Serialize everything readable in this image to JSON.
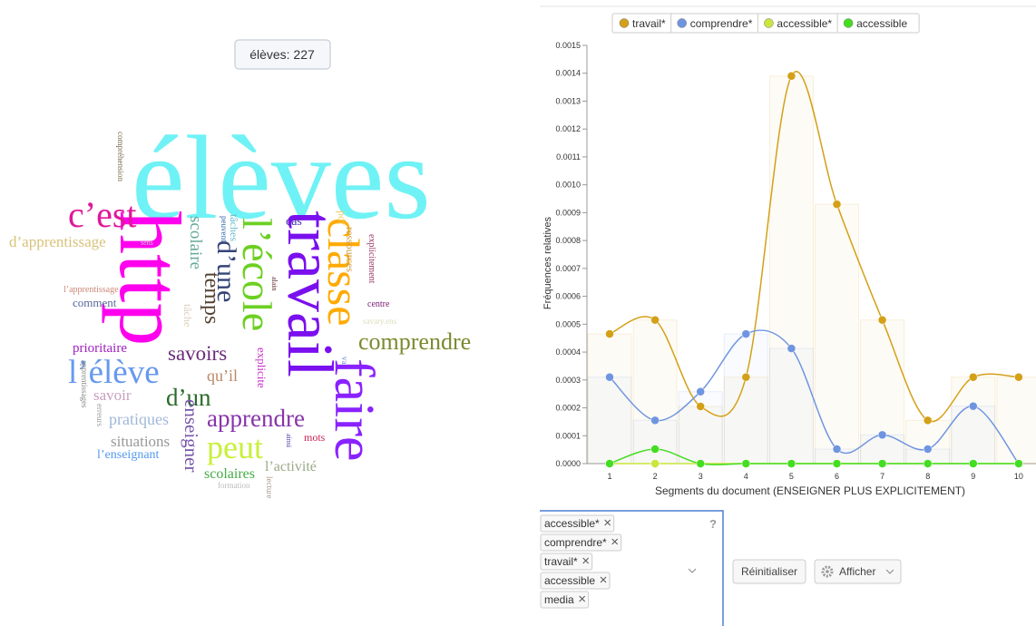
{
  "tooltip": "élèves: 227",
  "word_cloud": {
    "words": [
      {
        "text": "élèves",
        "color": "#6ff2f5"
      },
      {
        "text": "http",
        "color": "#ff00ee"
      },
      {
        "text": "travail",
        "color": "#7a10ee"
      },
      {
        "text": "faire",
        "color": "#8a22ff"
      },
      {
        "text": "classe",
        "color": "#ffaa00"
      },
      {
        "text": "l’école",
        "color": "#6cd022"
      },
      {
        "text": "c’est",
        "color": "#e0189a"
      },
      {
        "text": "l’élève",
        "color": "#6699ee"
      },
      {
        "text": "peut",
        "color": "#c8f03a"
      },
      {
        "text": "d’une",
        "color": "#334477"
      },
      {
        "text": "comprendre",
        "color": "#7a8a30"
      },
      {
        "text": "apprendre",
        "color": "#8833aa"
      },
      {
        "text": "d’un",
        "color": "#2a6a2a"
      },
      {
        "text": "savoirs",
        "color": "#6a2a7a"
      },
      {
        "text": "temps",
        "color": "#554433"
      },
      {
        "text": "enseigner",
        "color": "#7755aa"
      },
      {
        "text": "scolaire",
        "color": "#66aa99"
      },
      {
        "text": "d’apprentissage",
        "color": "#d9c27a"
      },
      {
        "text": "pratiques",
        "color": "#a0b8d8"
      },
      {
        "text": "situations",
        "color": "#999999"
      },
      {
        "text": "qu’il",
        "color": "#bb8866"
      },
      {
        "text": "savoir",
        "color": "#c9a0c0"
      },
      {
        "text": "scolaires",
        "color": "#44aa44"
      },
      {
        "text": "l’activité",
        "color": "#99aa88"
      },
      {
        "text": "prioritaire",
        "color": "#a020c0"
      },
      {
        "text": "l’enseignant",
        "color": "#5599ee"
      },
      {
        "text": "comment",
        "color": "#5a6a9a"
      },
      {
        "text": "cas",
        "color": "#4433aa"
      },
      {
        "text": "mots",
        "color": "#cc2255"
      },
      {
        "text": "explicite",
        "color": "#cc33cc"
      },
      {
        "text": "tâches",
        "color": "#66bbcc"
      },
      {
        "text": "ressources",
        "color": "#cc9944"
      },
      {
        "text": "explicitement",
        "color": "#993366"
      },
      {
        "text": "centre",
        "color": "#772277"
      },
      {
        "text": "pdf",
        "color": "#eecc66"
      },
      {
        "text": "l’apprentissage",
        "color": "#cc8877"
      },
      {
        "text": "tâche",
        "color": "#ddccbb"
      },
      {
        "text": "savary.ens",
        "color": "#ddddbb"
      },
      {
        "text": "compréhension",
        "color": "#776644"
      },
      {
        "text": "apprentissages",
        "color": "#888888"
      },
      {
        "text": "erreurs",
        "color": "#999999"
      },
      {
        "text": "lecture",
        "color": "#aa9988"
      },
      {
        "text": "formation",
        "color": "#bbbbbb"
      },
      {
        "text": "ainsi",
        "color": "#5544aa"
      },
      {
        "text": "peuvent",
        "color": "#3366aa"
      },
      {
        "text": "va",
        "color": "#7788cc"
      },
      {
        "text": "alain",
        "color": "#663333"
      },
      {
        "text": "sens",
        "color": "#cccccc"
      }
    ]
  },
  "chart_data": {
    "type": "line",
    "xlabel": "Segments du document (ENSEIGNER PLUS EXPLICITEMENT)",
    "ylabel": "Fréquences relatives",
    "categories": [
      "1",
      "2",
      "3",
      "4",
      "5",
      "6",
      "7",
      "8",
      "9",
      "10"
    ],
    "series": [
      {
        "name": "travail*",
        "color": "#d4a017",
        "values": [
          0.000465,
          0.000515,
          0.000205,
          0.00031,
          0.00139,
          0.00093,
          0.000515,
          0.000155,
          0.00031,
          0.00031
        ]
      },
      {
        "name": "comprendre*",
        "color": "#6f95e0",
        "values": [
          0.00031,
          0.000155,
          0.000258,
          0.000465,
          0.000413,
          5.2e-05,
          0.000103,
          5.2e-05,
          0.000206,
          0
        ]
      },
      {
        "name": "accessible*",
        "color": "#c8e63c",
        "values": [
          0,
          0,
          0,
          0,
          0,
          0,
          0,
          0,
          0,
          0
        ]
      },
      {
        "name": "accessible",
        "color": "#44dd22",
        "values": [
          0,
          5.2e-05,
          0,
          0,
          0,
          0,
          0,
          0,
          0,
          0
        ]
      }
    ],
    "ylim": [
      0,
      0.0015
    ],
    "yticks": [
      {
        "value": 0,
        "label": "0.0000"
      },
      0.0001,
      0.0002,
      0.0003,
      0.0004,
      0.0005,
      0.0006,
      0.0007,
      0.0008,
      0.0009,
      {
        "value": 0.001,
        "label": "0.0010"
      },
      0.0011,
      0.0012,
      0.0013,
      0.0014,
      0.0015
    ],
    "legend": "top"
  },
  "tags": [
    "accessible*",
    "comprendre*",
    "travail*",
    "accessible",
    "media"
  ],
  "help": "?",
  "buttons": {
    "reset": "Réinitialiser",
    "show": "Afficher"
  }
}
